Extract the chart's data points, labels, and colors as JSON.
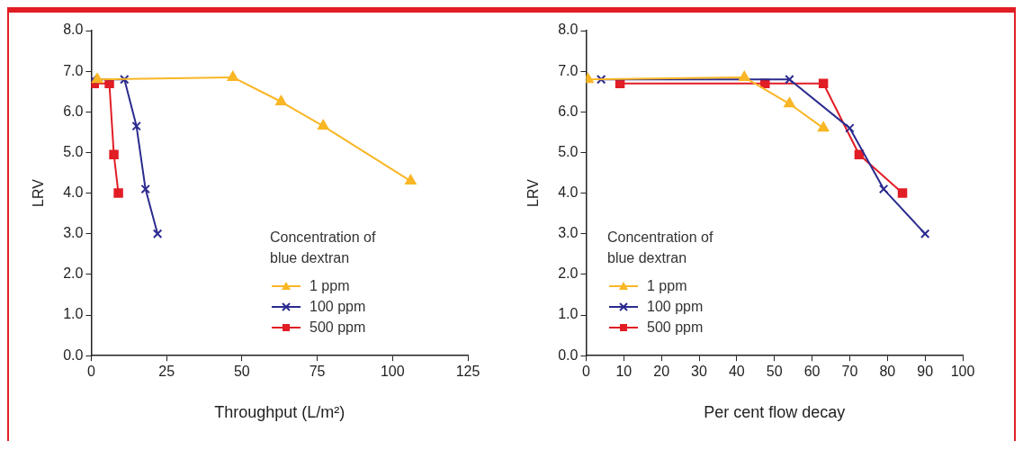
{
  "chart_data": [
    {
      "type": "line",
      "xlabel": "Throughput (L/m²)",
      "ylabel": "LRV",
      "xlim": [
        0,
        125
      ],
      "xticks": [
        0,
        25,
        50,
        75,
        100,
        125
      ],
      "ylim": [
        0,
        8
      ],
      "yticks": [
        {
          "value": 0,
          "label": "0.0"
        },
        {
          "value": 1,
          "label": "1.0"
        },
        {
          "value": 2,
          "label": "2.0"
        },
        {
          "value": 3,
          "label": "3.0"
        },
        {
          "value": 4,
          "label": "4.0"
        },
        {
          "value": 5,
          "label": "5.0"
        },
        {
          "value": 6,
          "label": "6.0"
        },
        {
          "value": 7,
          "label": "7.0"
        },
        {
          "value": 8,
          "label": "8.0"
        }
      ],
      "grid": false,
      "legend": "right",
      "legend_title": "Concentration of blue dextran",
      "series": [
        {
          "name": "1 ppm",
          "color": "#f9b625",
          "marker": "triangle",
          "x": [
            2,
            47,
            63,
            77,
            106
          ],
          "values": [
            6.8,
            6.85,
            6.25,
            5.65,
            4.3
          ]
        },
        {
          "name": "100 ppm",
          "color": "#2b2b8f",
          "marker": "cross",
          "x": [
            0.5,
            11,
            15,
            18,
            22
          ],
          "values": [
            6.8,
            6.8,
            5.65,
            4.1,
            3.0
          ]
        },
        {
          "name": "500 ppm",
          "color": "#e11d25",
          "marker": "square",
          "x": [
            1,
            6,
            7.5,
            9
          ],
          "values": [
            6.7,
            6.7,
            4.95,
            4.0
          ]
        }
      ]
    },
    {
      "type": "line",
      "xlabel": "Per cent flow decay",
      "ylabel": "LRV",
      "xlim": [
        0,
        100
      ],
      "xticks": [
        0,
        10,
        20,
        30,
        40,
        50,
        60,
        70,
        80,
        90,
        100
      ],
      "ylim": [
        0,
        8
      ],
      "yticks": [
        {
          "value": 0,
          "label": "0.0"
        },
        {
          "value": 1,
          "label": "1.0"
        },
        {
          "value": 2,
          "label": "2.0"
        },
        {
          "value": 3,
          "label": "3.0"
        },
        {
          "value": 4,
          "label": "4.0"
        },
        {
          "value": 5,
          "label": "5.0"
        },
        {
          "value": 6,
          "label": "6.0"
        },
        {
          "value": 7,
          "label": "7.0"
        },
        {
          "value": 8,
          "label": "8.0"
        }
      ],
      "grid": false,
      "legend": "left",
      "legend_title": "Concentration of blue dextran",
      "series": [
        {
          "name": "1 ppm",
          "color": "#f9b625",
          "marker": "triangle",
          "x": [
            0.5,
            42,
            54,
            63
          ],
          "values": [
            6.8,
            6.85,
            6.2,
            5.6
          ]
        },
        {
          "name": "100 ppm",
          "color": "#2b2b8f",
          "marker": "cross",
          "x": [
            4,
            54,
            70,
            79,
            90
          ],
          "values": [
            6.8,
            6.8,
            5.6,
            4.1,
            3.0
          ]
        },
        {
          "name": "500 ppm",
          "color": "#e11d25",
          "marker": "square",
          "x": [
            9,
            47.5,
            63,
            72.5,
            84
          ],
          "values": [
            6.7,
            6.7,
            6.7,
            4.95,
            4.0
          ]
        }
      ]
    }
  ]
}
